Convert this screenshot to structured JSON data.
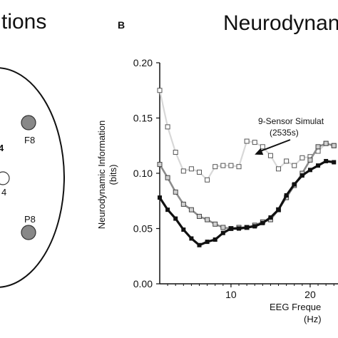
{
  "panel_a": {
    "title_fragment": "tions",
    "electrodes": [
      {
        "label": "F8",
        "fill": "gray"
      },
      {
        "label": "P8",
        "fill": "gray"
      },
      {
        "label": "4",
        "fill": "white"
      }
    ],
    "fragment_4": "4"
  },
  "panel_b": {
    "letter": "B",
    "title_fragment": "Neurodynan"
  },
  "chart_data": {
    "type": "line",
    "title": "Neurodynan",
    "xlabel": "EEG Freque",
    "xlabel_units": "(Hz)",
    "ylabel": "Neurodynamic Information",
    "ylabel_units": "(bits)",
    "ylim": [
      0,
      0.2
    ],
    "xlim": [
      1,
      24
    ],
    "yticks": [
      "0.00",
      "0.05",
      "0.10",
      "0.15",
      "0.20"
    ],
    "xticks": [
      {
        "value": 10,
        "label": "10"
      },
      {
        "value": 20,
        "label": "20"
      }
    ],
    "grid": false,
    "annotation": {
      "text": "9-Sensor Simulat",
      "subtext": "(2535s)",
      "target_x": 13,
      "target_y": 0.117
    },
    "series": [
      {
        "style": "light-gray-open-squares",
        "color": "#d8d8d8",
        "x": [
          1,
          2,
          3,
          4,
          5,
          6,
          7,
          8,
          9,
          10,
          11,
          12,
          13,
          14,
          15,
          16,
          17,
          18,
          19,
          20,
          21,
          22,
          23
        ],
        "y": [
          0.175,
          0.142,
          0.119,
          0.102,
          0.104,
          0.101,
          0.094,
          0.106,
          0.107,
          0.107,
          0.106,
          0.129,
          0.128,
          0.124,
          0.116,
          0.104,
          0.111,
          0.107,
          0.114,
          0.115,
          0.12,
          0.127,
          0.125
        ]
      },
      {
        "style": "gray-squares",
        "color": "#8c8c8c",
        "x": [
          1,
          2,
          3,
          4,
          5,
          6,
          7,
          8,
          9,
          10,
          11,
          12,
          13,
          14,
          15,
          16,
          17,
          18,
          19,
          20,
          21,
          22,
          23
        ],
        "y": [
          0.108,
          0.096,
          0.083,
          0.072,
          0.067,
          0.061,
          0.058,
          0.054,
          0.051,
          0.05,
          0.051,
          0.051,
          0.053,
          0.056,
          0.058,
          0.067,
          0.078,
          0.089,
          0.1,
          0.112,
          0.124,
          0.127,
          0.125
        ]
      },
      {
        "style": "black-filled-squares",
        "color": "#111111",
        "x": [
          1,
          2,
          3,
          4,
          5,
          6,
          7,
          8,
          9,
          10,
          11,
          12,
          13,
          14,
          15,
          16,
          17,
          18,
          19,
          20,
          21,
          22,
          23
        ],
        "y": [
          0.078,
          0.067,
          0.059,
          0.049,
          0.041,
          0.035,
          0.038,
          0.04,
          0.046,
          0.05,
          0.05,
          0.051,
          0.052,
          0.055,
          0.06,
          0.067,
          0.08,
          0.09,
          0.098,
          0.103,
          0.107,
          0.111,
          0.11
        ]
      }
    ]
  }
}
